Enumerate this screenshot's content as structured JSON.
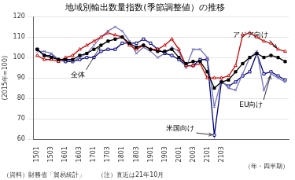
{
  "chart_data": {
    "type": "line",
    "title": "地域別輸出数量指数(季節調整値）の推移",
    "ylabel": "(2015年=100)",
    "xlabel": "（年・四半期）",
    "footnote": "（資料）財務省「貿易統計」　　（注）直近は21年10月",
    "categories": [
      "1501",
      null,
      "1503",
      null,
      "1601",
      null,
      "1603",
      null,
      "1701",
      null,
      "1703",
      null,
      "1801",
      null,
      "1803",
      null,
      "1901",
      null,
      "1903",
      null,
      "2001",
      null,
      "2003",
      null,
      "2101",
      null,
      "2103",
      null,
      null,
      null,
      null,
      null,
      null,
      null,
      null,
      null
    ],
    "ylim": [
      60,
      120
    ],
    "yticks": [
      60,
      70,
      80,
      90,
      100,
      110,
      120
    ],
    "grid": true,
    "series": [
      {
        "name": "全体",
        "color": "#000000",
        "marker": "square",
        "values": [
          104,
          101,
          100,
          99,
          99,
          99,
          101,
          102,
          104,
          106,
          108,
          109,
          110,
          107,
          105,
          106,
          104,
          103,
          103,
          104,
          100,
          97,
          98,
          98,
          93,
          85,
          88,
          89,
          93,
          97,
          100,
          102,
          100,
          101,
          100,
          98
        ]
      },
      {
        "name": "アジア向け",
        "color": "#cc0000",
        "marker": "triangle-open",
        "values": [
          101,
          99,
          99,
          98,
          100,
          101,
          104,
          106,
          108,
          110,
          112,
          111,
          110,
          106,
          104,
          106,
          104,
          104,
          106,
          109,
          104,
          96,
          96,
          97,
          90,
          90,
          90,
          91,
          96,
          111,
          112,
          110,
          108,
          107,
          104,
          103
        ]
      },
      {
        "name": "EU向け",
        "color": "#7777bb",
        "marker": "x",
        "values": [
          103,
          103,
          102,
          99,
          99,
          98,
          100,
          102,
          106,
          110,
          113,
          115,
          113,
          108,
          102,
          105,
          103,
          100,
          102,
          105,
          103,
          95,
          104,
          104,
          100,
          76,
          89,
          85,
          84,
          92,
          100,
          103,
          84,
          92,
          90,
          88
        ]
      },
      {
        "name": "米国向け",
        "color": "#000080",
        "marker": "square-open",
        "values": [
          104,
          101,
          101,
          99,
          98,
          98,
          99,
          100,
          100,
          103,
          104,
          104,
          107,
          107,
          107,
          109,
          107,
          104,
          102,
          101,
          99,
          96,
          96,
          99,
          99,
          62,
          88,
          86,
          88,
          91,
          93,
          102,
          92,
          93,
          91,
          89
        ]
      }
    ],
    "annotations": [
      {
        "text": "アジア向け",
        "series": "アジア向け",
        "index": 34
      },
      {
        "text": "EU向け",
        "series": "EU向け",
        "index": 33
      },
      {
        "text": "米国向け",
        "series": "米国向け",
        "index": 25
      },
      {
        "text": "全体",
        "series": "全体",
        "index": 9
      }
    ]
  }
}
